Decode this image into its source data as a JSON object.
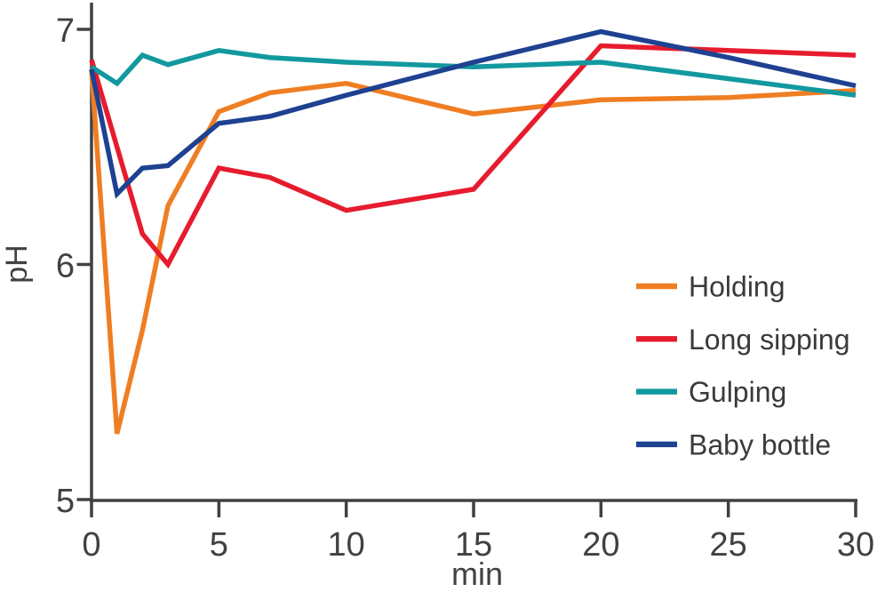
{
  "chart_data": {
    "type": "line",
    "title": "",
    "xlabel": "min",
    "ylabel": "pH",
    "xlim": [
      0,
      30
    ],
    "ylim": [
      5,
      7
    ],
    "x_ticks": [
      0,
      5,
      10,
      15,
      20,
      25,
      30
    ],
    "y_ticks": [
      5,
      6,
      7
    ],
    "grid": false,
    "legend_position": "right-center",
    "series": [
      {
        "name": "Holding",
        "color": "#ef7e23",
        "points": [
          [
            0,
            6.83
          ],
          [
            1,
            5.28
          ],
          [
            2,
            5.72
          ],
          [
            3,
            6.25
          ],
          [
            5,
            6.65
          ],
          [
            7,
            6.73
          ],
          [
            10,
            6.77
          ],
          [
            15,
            6.64
          ],
          [
            20,
            6.7
          ],
          [
            25,
            6.71
          ],
          [
            30,
            6.74
          ]
        ]
      },
      {
        "name": "Long sipping",
        "color": "#e61c2e",
        "points": [
          [
            0,
            6.87
          ],
          [
            2,
            6.13
          ],
          [
            3,
            6.0
          ],
          [
            5,
            6.41
          ],
          [
            7,
            6.37
          ],
          [
            10,
            6.23
          ],
          [
            15,
            6.32
          ],
          [
            20,
            6.93
          ],
          [
            25,
            6.91
          ],
          [
            30,
            6.89
          ]
        ]
      },
      {
        "name": "Gulping",
        "color": "#12999f",
        "points": [
          [
            0,
            6.84
          ],
          [
            1,
            6.77
          ],
          [
            2,
            6.89
          ],
          [
            3,
            6.85
          ],
          [
            5,
            6.91
          ],
          [
            7,
            6.88
          ],
          [
            10,
            6.86
          ],
          [
            15,
            6.84
          ],
          [
            20,
            6.86
          ],
          [
            25,
            6.79
          ],
          [
            30,
            6.72
          ]
        ]
      },
      {
        "name": "Baby bottle",
        "color": "#1e4191",
        "points": [
          [
            0,
            6.83
          ],
          [
            1,
            6.3
          ],
          [
            2,
            6.41
          ],
          [
            3,
            6.42
          ],
          [
            5,
            6.6
          ],
          [
            7,
            6.63
          ],
          [
            10,
            6.72
          ],
          [
            15,
            6.86
          ],
          [
            20,
            6.99
          ],
          [
            25,
            6.88
          ],
          [
            30,
            6.76
          ]
        ]
      }
    ]
  },
  "colors": {
    "axis": "#414042",
    "text": "#414042",
    "background": "#ffffff"
  }
}
